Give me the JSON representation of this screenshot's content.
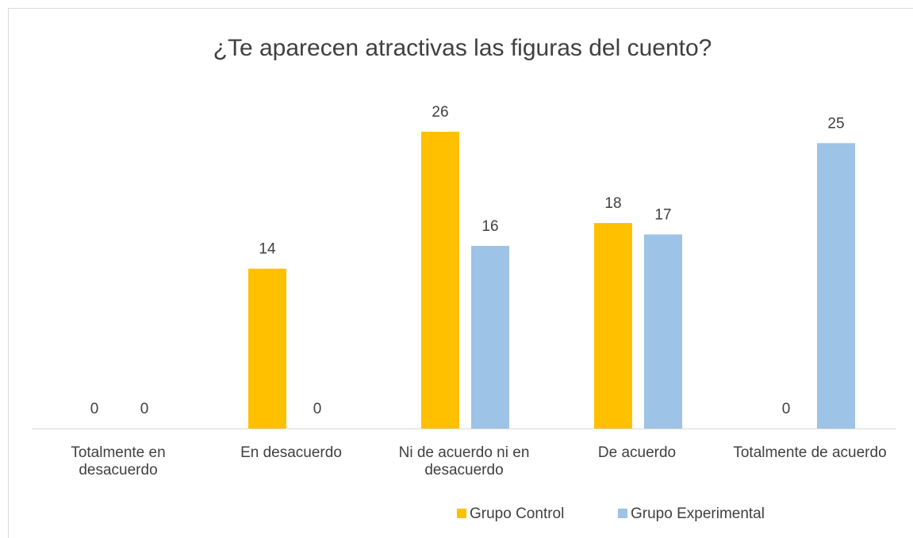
{
  "chart_data": {
    "type": "bar",
    "title": "¿Te aparecen atractivas las figuras del cuento?",
    "categories": [
      "Totalmente en desacuerdo",
      "En desacuerdo",
      "Ni de acuerdo ni en desacuerdo",
      "De acuerdo",
      "Totalmente de acuerdo"
    ],
    "series": [
      {
        "name": "Grupo Control",
        "color": "#FFC000",
        "values": [
          0,
          14,
          26,
          18,
          0
        ]
      },
      {
        "name": "Grupo Experimental",
        "color": "#9DC3E6",
        "values": [
          0,
          0,
          16,
          17,
          25
        ]
      }
    ],
    "legend": "bottom"
  }
}
